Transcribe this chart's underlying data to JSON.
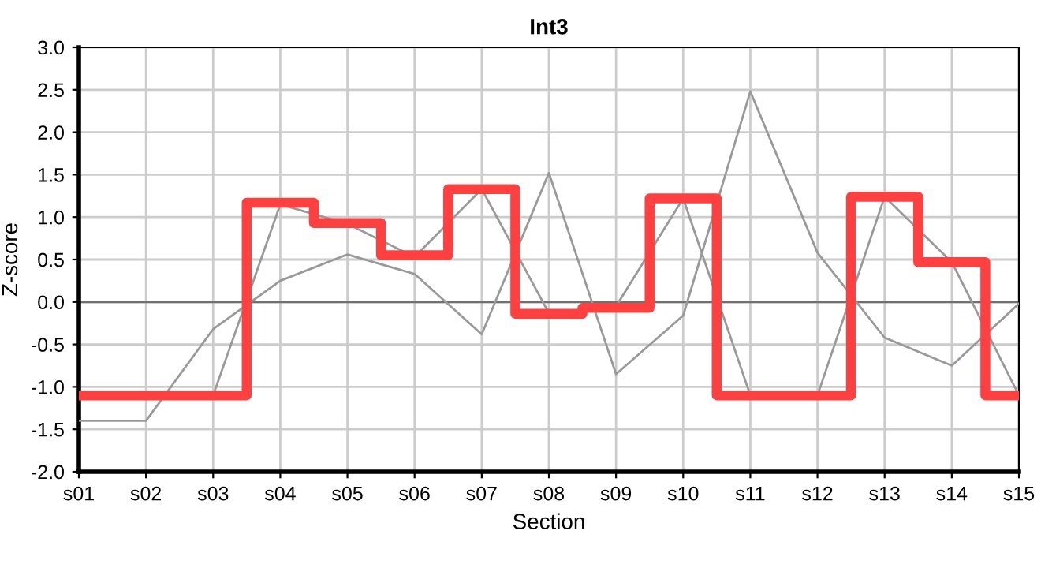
{
  "chart_data": {
    "type": "line",
    "title": "Int3",
    "xlabel": "Section",
    "ylabel": "Z-score",
    "categories": [
      "s01",
      "s02",
      "s03",
      "s04",
      "s05",
      "s06",
      "s07",
      "s08",
      "s09",
      "s10",
      "s11",
      "s12",
      "s13",
      "s14",
      "s15"
    ],
    "series": [
      {
        "color": "#999999",
        "values": [
          -1.4,
          -1.4,
          -0.32,
          0.25,
          0.56,
          0.33,
          -0.38,
          1.52,
          -0.85,
          -0.16,
          2.48,
          0.58,
          -0.42,
          -0.75,
          -0.02
        ]
      },
      {
        "color": "#999999",
        "values": [
          null,
          -1.1,
          -1.1,
          1.15,
          0.92,
          0.53,
          1.33,
          -0.13,
          -0.05,
          1.22,
          -1.1,
          -1.1,
          1.24,
          0.47,
          -1.1
        ]
      },
      {
        "type": "step",
        "color": "#ff4040",
        "values": [
          -1.1,
          -1.1,
          -1.1,
          1.17,
          0.93,
          0.55,
          1.33,
          -0.14,
          -0.07,
          1.22,
          -1.1,
          -1.1,
          1.24,
          0.47,
          -1.1
        ]
      }
    ],
    "ylim": [
      -2.0,
      3.0
    ],
    "yticks": [
      {
        "value": -2.0,
        "label": "-2.0"
      },
      {
        "value": -1.5,
        "label": "-1.5"
      },
      {
        "value": -1.0,
        "label": "-1.0"
      },
      {
        "value": -0.5,
        "label": "-0.5"
      },
      {
        "value": 0.0,
        "label": "0.0"
      },
      {
        "value": 0.5,
        "label": "0.5"
      },
      {
        "value": 1.0,
        "label": "1.0"
      },
      {
        "value": 1.5,
        "label": "1.5"
      },
      {
        "value": 2.0,
        "label": "2.0"
      },
      {
        "value": 2.5,
        "label": "2.5"
      },
      {
        "value": 3.0,
        "label": "3.0"
      }
    ],
    "ref_lines": [
      {
        "axis": "y",
        "value": 0.0,
        "color": "#707070"
      }
    ],
    "grid": true,
    "marker": "none",
    "line_style": "solid"
  }
}
